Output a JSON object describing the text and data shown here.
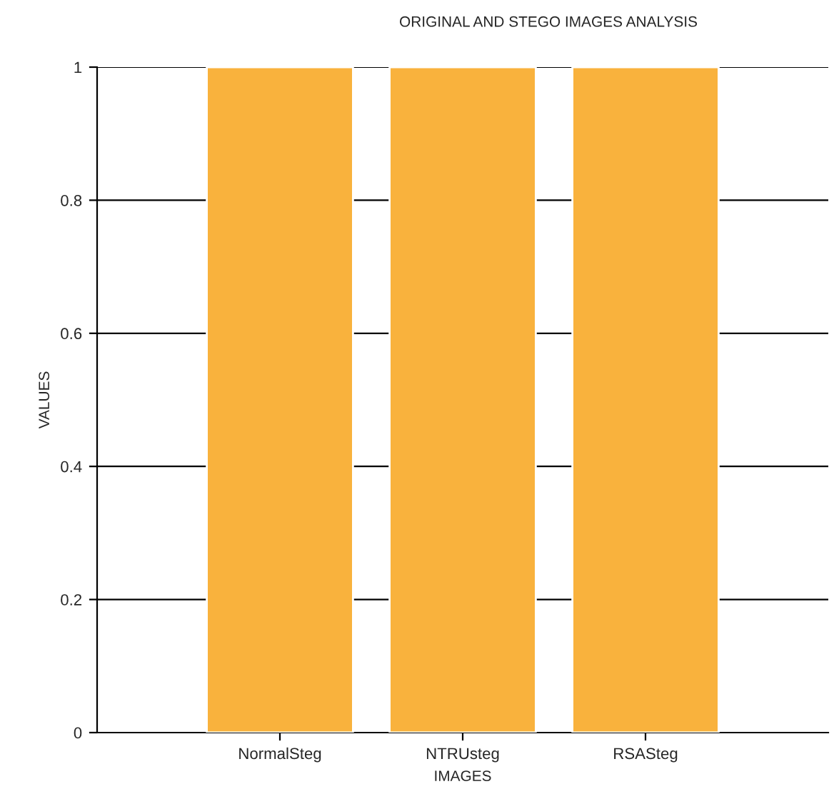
{
  "chart_data": {
    "type": "bar",
    "title": "ORIGINAL AND STEGO IMAGES ANALYSIS",
    "xlabel": "IMAGES",
    "ylabel": "VALUES",
    "categories": [
      "NormalSteg",
      "NTRUsteg",
      "RSASteg"
    ],
    "values": [
      1,
      1,
      1
    ],
    "color": "#f9b23d",
    "ylim": [
      0,
      1
    ],
    "yticks": [
      0,
      0.2,
      0.4,
      0.6,
      0.8,
      1
    ],
    "grid": "y"
  }
}
